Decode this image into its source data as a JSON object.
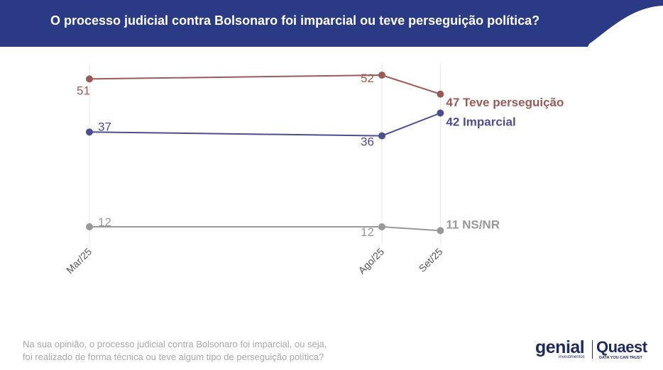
{
  "header": {
    "title": "O processo judicial contra Bolsonaro foi imparcial ou teve perseguição política?",
    "background_color": "#2b3a84"
  },
  "chart_data": {
    "type": "line",
    "categories": [
      "Mar/25",
      "Ago/25",
      "Set/25"
    ],
    "x_positions_months": [
      0,
      5,
      6
    ],
    "ylim": [
      0,
      60
    ],
    "grid": "vertical-only",
    "legend": "end-labels",
    "series": [
      {
        "name": "Teve perseguição",
        "values": [
          51,
          52,
          47
        ],
        "color": "#9b5a58",
        "value_labels": [
          "51",
          "52"
        ],
        "end_label": "47 Teve perseguição"
      },
      {
        "name": "Imparcial",
        "values": [
          37,
          36,
          42
        ],
        "color": "#4e4d94",
        "value_labels": [
          "37",
          "36"
        ],
        "end_label": "42 Imparcial"
      },
      {
        "name": "NS/NR",
        "values": [
          12,
          12,
          11
        ],
        "color": "#999999",
        "value_labels": [
          "12",
          "12"
        ],
        "end_label": "11 NS/NR"
      }
    ]
  },
  "footnote": {
    "line1": "Na sua opinião, o processo judicial contra Bolsonaro foi imparcial, ou seja,",
    "line2": "foi realizado de forma técnica ou teve algum tipo de perseguição política?"
  },
  "logos": {
    "genial": "genial",
    "genial_sub": "investimentos",
    "quaest": "Quaest",
    "quaest_sub": "DATA YOU CAN TRUST"
  }
}
